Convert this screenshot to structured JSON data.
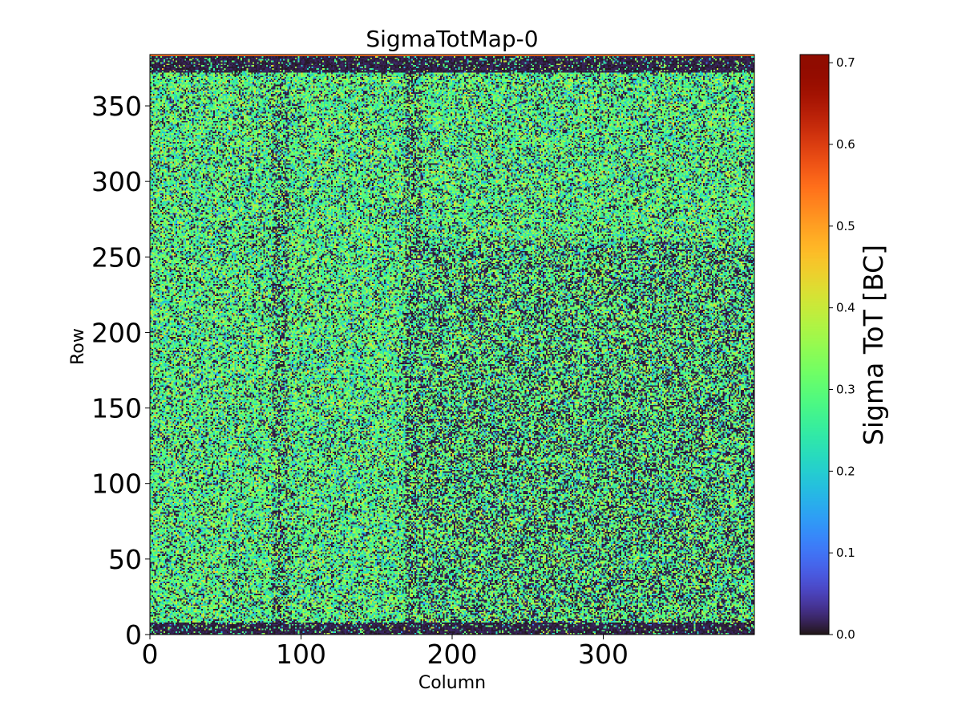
{
  "chart_data": {
    "type": "heatmap",
    "title": "SigmaTotMap-0",
    "xlabel": "Column",
    "ylabel": "Row",
    "xlim": [
      0,
      400
    ],
    "ylim": [
      0,
      384
    ],
    "x_ticks": [
      0,
      100,
      200,
      300
    ],
    "y_ticks": [
      0,
      50,
      100,
      150,
      200,
      250,
      300,
      350
    ],
    "grid_size": {
      "columns": 400,
      "rows": 384
    },
    "colormap": "turbo",
    "colorbar": {
      "label": "Sigma ToT [BC]",
      "range": [
        0.0,
        0.71
      ],
      "ticks": [
        "0.0",
        "0.1",
        "0.2",
        "0.3",
        "0.4",
        "0.5",
        "0.6",
        "0.7"
      ],
      "placement": "right"
    },
    "value_description": {
      "typical_range": [
        0.0,
        0.5
      ],
      "dense_zero_bands": [
        {
          "axis": "row",
          "range": [
            372,
            384
          ],
          "value": 0.0
        },
        {
          "axis": "row",
          "range": [
            0,
            8
          ],
          "value": 0.0
        }
      ],
      "top_edge_row_value": 0.55,
      "lower_right_region": {
        "columns": [
          170,
          400
        ],
        "rows": [
          0,
          260
        ],
        "note": "higher fraction of zero pixels"
      }
    }
  }
}
